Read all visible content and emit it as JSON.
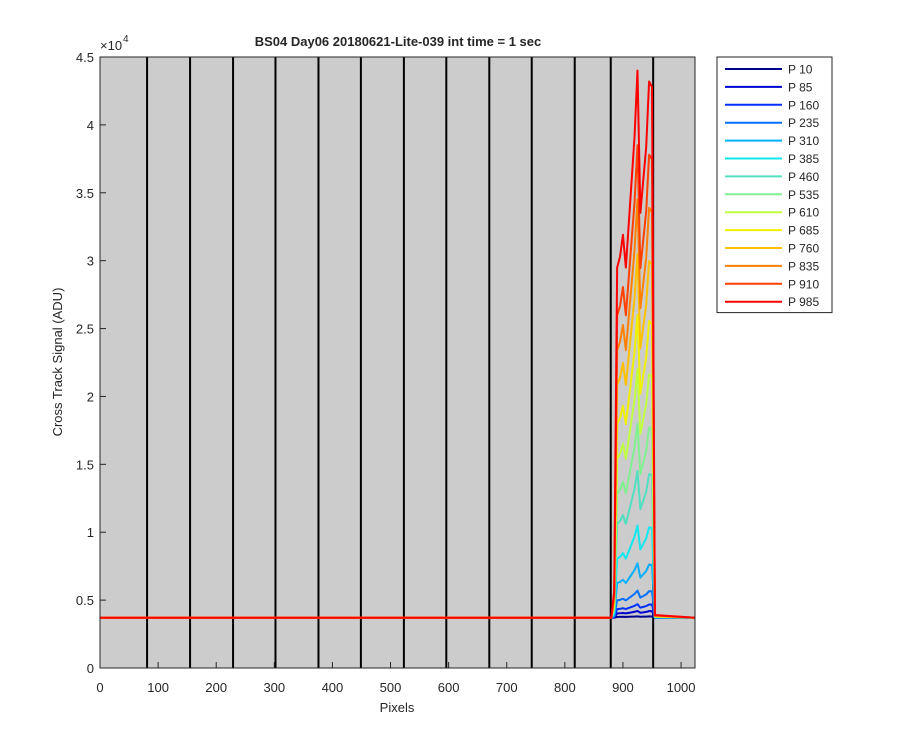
{
  "chart_data": {
    "type": "line",
    "title": "BS04 Day06 20180621-Lite-039 int time = 1 sec",
    "x_label": "Pixels",
    "y_label": "Cross Track Signal (ADU)",
    "y_exponent": {
      "base": "×10",
      "power": "4"
    },
    "xlim": [
      0,
      1024
    ],
    "ylim": [
      0,
      45000
    ],
    "xticks": [
      0,
      100,
      200,
      300,
      400,
      500,
      600,
      700,
      800,
      900,
      1000
    ],
    "yticks": [
      0,
      {
        "value": 5000,
        "label": "0.5"
      },
      {
        "value": 10000,
        "label": "1"
      },
      {
        "value": 15000,
        "label": "1.5"
      },
      {
        "value": 20000,
        "label": "2"
      },
      {
        "value": 25000,
        "label": "2.5"
      },
      {
        "value": 30000,
        "label": "3"
      },
      {
        "value": 35000,
        "label": "3.5"
      },
      {
        "value": 40000,
        "label": "4"
      },
      {
        "value": 45000,
        "label": "4.5"
      }
    ],
    "background": "#cccccc",
    "vertical_lines": {
      "color": "#000000",
      "x": [
        81,
        155,
        229,
        302,
        376,
        449,
        523,
        596,
        670,
        743,
        817,
        879,
        952
      ]
    },
    "legend": "outside-right",
    "x": [
      0,
      880,
      885,
      890,
      895,
      900,
      905,
      910,
      915,
      920,
      925,
      930,
      935,
      940,
      945,
      950,
      955,
      1024
    ],
    "series": [
      {
        "name": "P 10",
        "color": "#00008f",
        "values": [
          3700,
          3700,
          3705,
          3764,
          3766,
          3770,
          3764,
          3772,
          3780,
          3788,
          3800,
          3774,
          3780,
          3786,
          3798,
          3797,
          3700,
          3700
        ]
      },
      {
        "name": "P 85",
        "color": "#0000d0",
        "values": [
          3700,
          3700,
          3725,
          4020,
          4030,
          4050,
          4020,
          4060,
          4100,
          4140,
          4200,
          4070,
          4100,
          4130,
          4190,
          4185,
          3703,
          3700
        ]
      },
      {
        "name": "P 160",
        "color": "#0030ff",
        "values": [
          3700,
          3700,
          3750,
          4340,
          4360,
          4400,
          4340,
          4420,
          4500,
          4580,
          4700,
          4440,
          4500,
          4560,
          4680,
          4670,
          3705,
          3700
        ]
      },
      {
        "name": "P 235",
        "color": "#0070ff",
        "values": [
          3700,
          3700,
          3800,
          4980,
          5020,
          5100,
          4980,
          5140,
          5300,
          5460,
          5700,
          5180,
          5300,
          5420,
          5660,
          5640,
          3710,
          3700
        ]
      },
      {
        "name": "P 310",
        "color": "#00b0ff",
        "values": [
          3700,
          3700,
          3900,
          6260,
          6340,
          6500,
          6260,
          6580,
          6900,
          7220,
          7700,
          6660,
          6900,
          7140,
          7620,
          7580,
          3720,
          3700
        ]
      },
      {
        "name": "P 385",
        "color": "#10e8f0",
        "values": [
          3700,
          3700,
          4040,
          8052,
          8188,
          8460,
          8052,
          8596,
          9140,
          9684,
          10500,
          8732,
          9140,
          9548,
          10364,
          10296,
          3734,
          3700
        ]
      },
      {
        "name": "P 460",
        "color": "#50e0c0",
        "values": [
          3700,
          3700,
          4240,
          10612,
          10828,
          11260,
          10612,
          11476,
          12340,
          13204,
          14500,
          11692,
          12340,
          12988,
          14284,
          14176,
          3754,
          3700
        ]
      },
      {
        "name": "P 535",
        "color": "#80f090",
        "values": [
          3700,
          3700,
          4415,
          12852,
          13138,
          13710,
          12852,
          13996,
          15140,
          16284,
          18000,
          14282,
          15140,
          15998,
          17714,
          17571,
          3772,
          3700
        ]
      },
      {
        "name": "P 610",
        "color": "#c0ff40",
        "values": [
          3700,
          3700,
          4615,
          15412,
          15778,
          16510,
          15412,
          16876,
          18340,
          19804,
          22000,
          17242,
          18340,
          19438,
          21634,
          21451,
          3792,
          3700
        ]
      },
      {
        "name": "P 685",
        "color": "#f0f000",
        "values": [
          3700,
          3700,
          4815,
          17972,
          18418,
          19310,
          17972,
          19756,
          21540,
          23324,
          26000,
          20202,
          21540,
          22878,
          25554,
          25331,
          3812,
          3700
        ]
      },
      {
        "name": "P 760",
        "color": "#ffc000",
        "values": [
          3700,
          3700,
          5040,
          20852,
          21388,
          22460,
          20852,
          22996,
          25140,
          27284,
          30500,
          23532,
          25140,
          26748,
          29964,
          29696,
          3834,
          3700
        ]
      },
      {
        "name": "P 835",
        "color": "#ff8000",
        "values": [
          3700,
          3700,
          5240,
          23412,
          24028,
          25260,
          23412,
          25876,
          28340,
          30804,
          34500,
          26492,
          28340,
          30188,
          33884,
          33576,
          3854,
          3700
        ]
      },
      {
        "name": "P 910",
        "color": "#ff4000",
        "values": [
          3700,
          3700,
          5440,
          25972,
          26668,
          28060,
          25972,
          28756,
          31540,
          34324,
          38500,
          29452,
          31540,
          33628,
          37804,
          37456,
          3874,
          3700
        ]
      },
      {
        "name": "P 985",
        "color": "#ff0000",
        "values": [
          3700,
          3700,
          5715,
          29492,
          30298,
          31910,
          29492,
          32716,
          35940,
          39164,
          44000,
          33522,
          35940,
          38358,
          43194,
          42791,
          3902,
          3700
        ]
      }
    ]
  }
}
